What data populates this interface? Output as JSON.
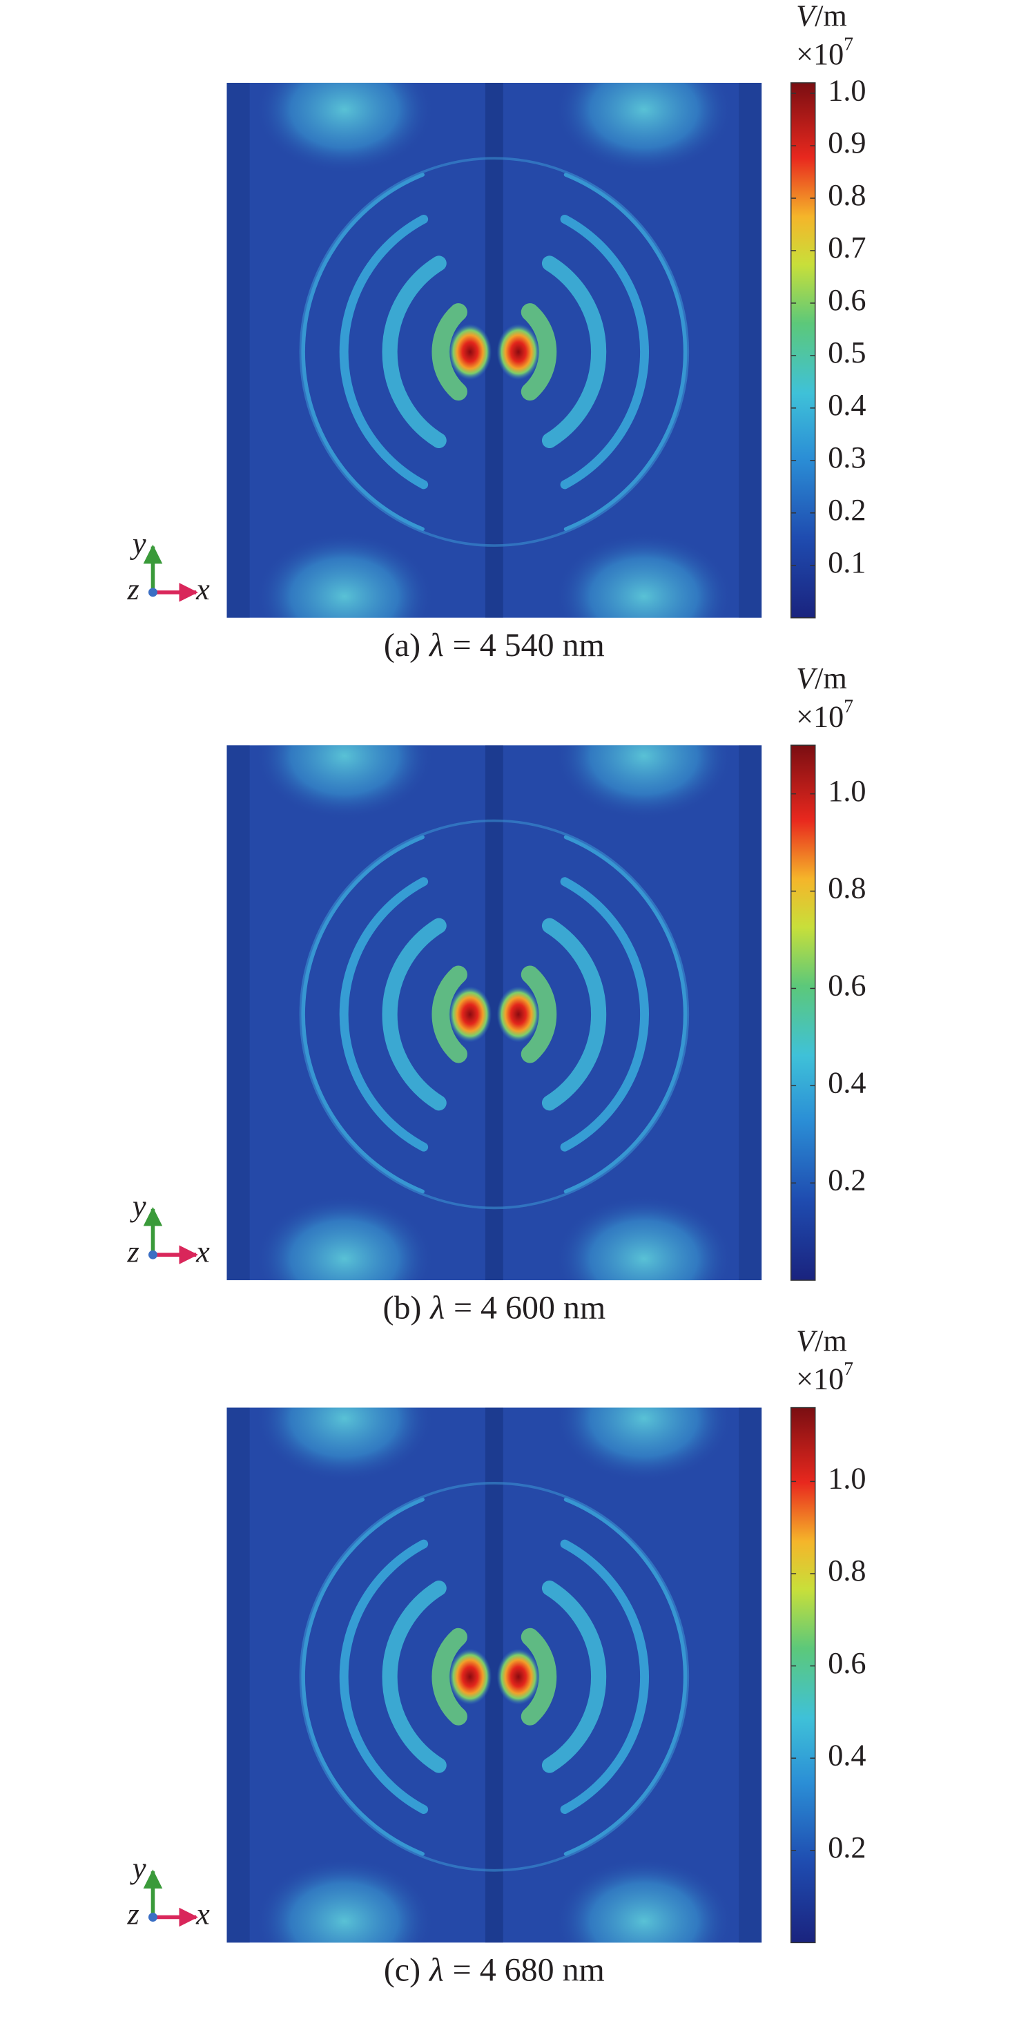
{
  "panels": [
    {
      "colorbar": {
        "unit_symbol": "V",
        "unit": "/m",
        "multiplier": "×10",
        "exponent": "7",
        "range": [
          0,
          1.02
        ],
        "ticks": [
          0.1,
          0.2,
          0.3,
          0.4,
          0.5,
          0.6,
          0.7,
          0.8,
          0.9,
          {
            "value": 1.0,
            "label": "1.0"
          }
        ]
      },
      "axes": {
        "y": "y",
        "z": "z",
        "x": "x"
      },
      "caption": {
        "label": "(a)",
        "symbol": "λ",
        "text": "= 4 540 nm"
      }
    },
    {
      "colorbar": {
        "unit_symbol": "V",
        "unit": "/m",
        "multiplier": "×10",
        "exponent": "7",
        "range": [
          0,
          1.1
        ],
        "ticks": [
          0.2,
          0.4,
          0.6,
          0.8,
          {
            "value": 1.0,
            "label": "1.0"
          }
        ]
      },
      "axes": {
        "y": "y",
        "z": "z",
        "x": "x"
      },
      "caption": {
        "label": "(b)",
        "symbol": "λ",
        "text": "= 4 600 nm"
      }
    },
    {
      "colorbar": {
        "unit_symbol": "V",
        "unit": "/m",
        "multiplier": "×10",
        "exponent": "7",
        "range": [
          0,
          1.16
        ],
        "ticks": [
          0.2,
          0.4,
          0.6,
          0.8,
          {
            "value": 1.0,
            "label": "1.0"
          }
        ]
      },
      "axes": {
        "y": "y",
        "z": "z",
        "x": "x"
      },
      "caption": {
        "label": "(c)",
        "symbol": "λ",
        "text": "= 4 680 nm"
      }
    }
  ]
}
